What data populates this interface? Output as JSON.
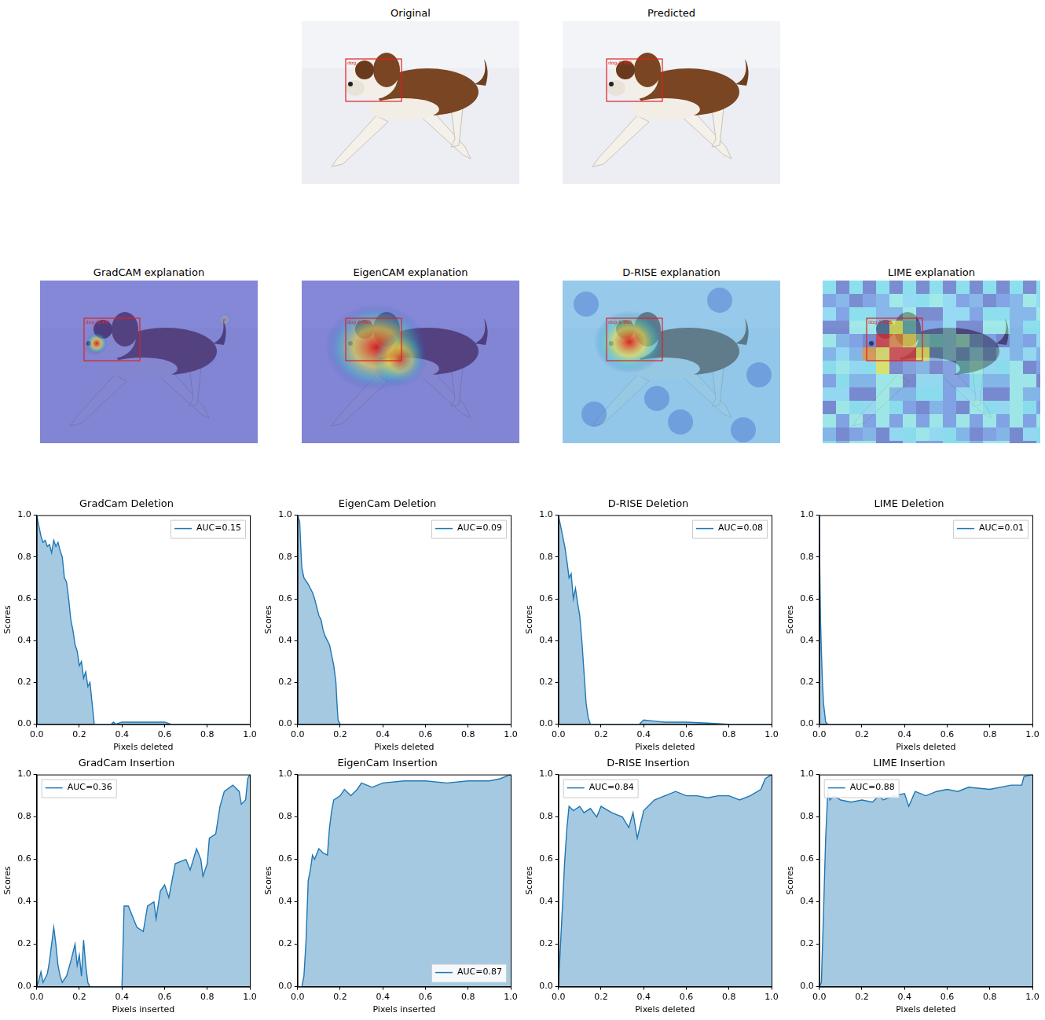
{
  "images": [
    {
      "title": "Original",
      "box_label": "dog"
    },
    {
      "title": "Predicted",
      "box_label": "dog-0.995"
    },
    {
      "title": "GradCAM explanation",
      "box_label": "dog-0.995"
    },
    {
      "title": "EigenCAM explanation",
      "box_label": "dog-0.995"
    },
    {
      "title": "D-RISE explanation",
      "box_label": "dog-0.995"
    },
    {
      "title": "LIME explanation",
      "box_label": "dog-0.995"
    }
  ],
  "chart_data": [
    {
      "type": "area",
      "title": "GradCam Deletion",
      "x_label": "Pixels deleted",
      "y_label": "Scores",
      "x": [
        0,
        0.01,
        0.02,
        0.03,
        0.04,
        0.05,
        0.06,
        0.07,
        0.08,
        0.09,
        0.1,
        0.11,
        0.12,
        0.13,
        0.14,
        0.15,
        0.16,
        0.17,
        0.18,
        0.19,
        0.2,
        0.21,
        0.22,
        0.23,
        0.24,
        0.25,
        0.26,
        0.27,
        0.35,
        0.36,
        0.37,
        0.4,
        0.6,
        0.63,
        1.0
      ],
      "series": [
        {
          "name": "AUC=0.15",
          "color": "#1f77b4",
          "values": [
            1.0,
            0.95,
            0.9,
            0.87,
            0.88,
            0.85,
            0.86,
            0.82,
            0.88,
            0.85,
            0.87,
            0.83,
            0.8,
            0.7,
            0.68,
            0.6,
            0.5,
            0.45,
            0.38,
            0.35,
            0.28,
            0.3,
            0.22,
            0.25,
            0.18,
            0.2,
            0.1,
            0.0,
            0.0,
            0.01,
            0.0,
            0.01,
            0.01,
            0.0,
            0.0
          ]
        }
      ],
      "xlim": [
        0,
        1
      ],
      "ylim": [
        0,
        1
      ],
      "xticks": [
        {
          "value": 0,
          "label": "0.0"
        },
        {
          "value": 0.2,
          "label": "0.2"
        },
        {
          "value": 0.4,
          "label": "0.4"
        },
        {
          "value": 0.6,
          "label": "0.6"
        },
        {
          "value": 0.8,
          "label": "0.8"
        },
        {
          "value": 1,
          "label": "1.0"
        }
      ],
      "yticks": [
        {
          "value": 0,
          "label": "0.0"
        },
        {
          "value": 0.2,
          "label": "0.2"
        },
        {
          "value": 0.4,
          "label": "0.4"
        },
        {
          "value": 0.6,
          "label": "0.6"
        },
        {
          "value": 0.8,
          "label": "0.8"
        },
        {
          "value": 1,
          "label": "1.0"
        }
      ],
      "grid": false,
      "legend": "upper right"
    },
    {
      "type": "area",
      "title": "EigenCam Deletion",
      "x_label": "Pixels deleted",
      "y_label": "Scores",
      "x": [
        0,
        0.01,
        0.015,
        0.02,
        0.03,
        0.05,
        0.07,
        0.08,
        0.1,
        0.11,
        0.12,
        0.13,
        0.15,
        0.16,
        0.17,
        0.18,
        0.185,
        0.19,
        0.2,
        1.0
      ],
      "series": [
        {
          "name": "AUC=0.09",
          "color": "#1f77b4",
          "values": [
            1.0,
            0.97,
            0.85,
            0.75,
            0.7,
            0.67,
            0.63,
            0.6,
            0.52,
            0.5,
            0.45,
            0.42,
            0.38,
            0.33,
            0.28,
            0.2,
            0.1,
            0.02,
            0.0,
            0.0
          ]
        }
      ],
      "xlim": [
        0,
        1
      ],
      "ylim": [
        0,
        1
      ],
      "xticks": [
        {
          "value": 0,
          "label": "0.0"
        },
        {
          "value": 0.2,
          "label": "0.2"
        },
        {
          "value": 0.4,
          "label": "0.4"
        },
        {
          "value": 0.6,
          "label": "0.6"
        },
        {
          "value": 0.8,
          "label": "0.8"
        },
        {
          "value": 1,
          "label": "1.0"
        }
      ],
      "yticks": [
        {
          "value": 0,
          "label": "0.0"
        },
        {
          "value": 0.2,
          "label": "0.2"
        },
        {
          "value": 0.4,
          "label": "0.4"
        },
        {
          "value": 0.6,
          "label": "0.6"
        },
        {
          "value": 0.8,
          "label": "0.8"
        },
        {
          "value": 1,
          "label": "1.0"
        }
      ],
      "grid": false,
      "legend": "upper right"
    },
    {
      "type": "area",
      "title": "D-RISE Deletion",
      "x_label": "Pixels deleted",
      "y_label": "Scores",
      "x": [
        0,
        0.01,
        0.02,
        0.03,
        0.04,
        0.05,
        0.06,
        0.07,
        0.08,
        0.09,
        0.1,
        0.11,
        0.12,
        0.13,
        0.14,
        0.15,
        0.2,
        0.38,
        0.4,
        0.45,
        0.5,
        0.6,
        0.7,
        0.8,
        1.0
      ],
      "series": [
        {
          "name": "AUC=0.08",
          "color": "#1f77b4",
          "values": [
            1.0,
            0.95,
            0.9,
            0.85,
            0.78,
            0.7,
            0.72,
            0.6,
            0.65,
            0.58,
            0.52,
            0.4,
            0.25,
            0.1,
            0.03,
            0.0,
            0.0,
            0.0,
            0.02,
            0.015,
            0.01,
            0.01,
            0.005,
            0.0,
            0.0
          ]
        }
      ],
      "xlim": [
        0,
        1
      ],
      "ylim": [
        0,
        1
      ],
      "xticks": [
        {
          "value": 0,
          "label": "0.0"
        },
        {
          "value": 0.2,
          "label": "0.2"
        },
        {
          "value": 0.4,
          "label": "0.4"
        },
        {
          "value": 0.6,
          "label": "0.6"
        },
        {
          "value": 0.8,
          "label": "0.8"
        },
        {
          "value": 1,
          "label": "1.0"
        }
      ],
      "yticks": [
        {
          "value": 0,
          "label": "0.0"
        },
        {
          "value": 0.2,
          "label": "0.2"
        },
        {
          "value": 0.4,
          "label": "0.4"
        },
        {
          "value": 0.6,
          "label": "0.6"
        },
        {
          "value": 0.8,
          "label": "0.8"
        },
        {
          "value": 1,
          "label": "1.0"
        }
      ],
      "grid": false,
      "legend": "upper right"
    },
    {
      "type": "area",
      "title": "LIME Deletion",
      "x_label": "Pixels deleted",
      "y_label": "Scores",
      "x": [
        0,
        0.003,
        0.006,
        0.01,
        0.015,
        0.02,
        0.03,
        0.04,
        1.0
      ],
      "series": [
        {
          "name": "AUC=0.01",
          "color": "#1f77b4",
          "values": [
            1.0,
            0.7,
            0.5,
            0.35,
            0.2,
            0.1,
            0.01,
            0.0,
            0.0
          ]
        }
      ],
      "xlim": [
        0,
        1
      ],
      "ylim": [
        0,
        1
      ],
      "xticks": [
        {
          "value": 0,
          "label": "0.0"
        },
        {
          "value": 0.2,
          "label": "0.2"
        },
        {
          "value": 0.4,
          "label": "0.4"
        },
        {
          "value": 0.6,
          "label": "0.6"
        },
        {
          "value": 0.8,
          "label": "0.8"
        },
        {
          "value": 1,
          "label": "1.0"
        }
      ],
      "yticks": [
        {
          "value": 0,
          "label": "0.0"
        },
        {
          "value": 0.2,
          "label": "0.2"
        },
        {
          "value": 0.4,
          "label": "0.4"
        },
        {
          "value": 0.6,
          "label": "0.6"
        },
        {
          "value": 0.8,
          "label": "0.8"
        },
        {
          "value": 1,
          "label": "1.0"
        }
      ],
      "grid": false,
      "legend": "upper right"
    },
    {
      "type": "area",
      "title": "GradCam Insertion",
      "x_label": "Pixels inserted",
      "y_label": "Scores",
      "x": [
        0,
        0.01,
        0.02,
        0.03,
        0.05,
        0.06,
        0.07,
        0.08,
        0.09,
        0.1,
        0.11,
        0.12,
        0.14,
        0.16,
        0.18,
        0.19,
        0.2,
        0.21,
        0.22,
        0.23,
        0.24,
        0.25,
        0.4,
        0.41,
        0.43,
        0.45,
        0.47,
        0.5,
        0.52,
        0.55,
        0.56,
        0.58,
        0.6,
        0.62,
        0.65,
        0.7,
        0.72,
        0.75,
        0.77,
        0.78,
        0.8,
        0.81,
        0.84,
        0.86,
        0.88,
        0.92,
        0.95,
        0.96,
        0.98,
        0.99,
        1.0
      ],
      "series": [
        {
          "name": "AUC=0.36",
          "color": "#1f77b4",
          "values": [
            0.0,
            0.03,
            0.07,
            0.02,
            0.06,
            0.12,
            0.2,
            0.28,
            0.2,
            0.1,
            0.05,
            0.02,
            0.05,
            0.12,
            0.2,
            0.1,
            0.15,
            0.05,
            0.22,
            0.1,
            0.02,
            0.0,
            0.0,
            0.38,
            0.38,
            0.33,
            0.28,
            0.26,
            0.38,
            0.4,
            0.32,
            0.45,
            0.48,
            0.42,
            0.58,
            0.6,
            0.55,
            0.65,
            0.6,
            0.52,
            0.58,
            0.7,
            0.72,
            0.85,
            0.92,
            0.95,
            0.92,
            0.86,
            0.88,
            0.98,
            1.0
          ]
        }
      ],
      "xlim": [
        0,
        1
      ],
      "ylim": [
        0,
        1
      ],
      "xticks": [
        {
          "value": 0,
          "label": "0.0"
        },
        {
          "value": 0.2,
          "label": "0.2"
        },
        {
          "value": 0.4,
          "label": "0.4"
        },
        {
          "value": 0.6,
          "label": "0.6"
        },
        {
          "value": 0.8,
          "label": "0.8"
        },
        {
          "value": 1,
          "label": "1.0"
        }
      ],
      "yticks": [
        {
          "value": 0,
          "label": "0.0"
        },
        {
          "value": 0.2,
          "label": "0.2"
        },
        {
          "value": 0.4,
          "label": "0.4"
        },
        {
          "value": 0.6,
          "label": "0.6"
        },
        {
          "value": 0.8,
          "label": "0.8"
        },
        {
          "value": 1,
          "label": "1.0"
        }
      ],
      "grid": false,
      "legend": "upper left"
    },
    {
      "type": "area",
      "title": "EigenCam Insertion",
      "x_label": "Pixels inserted",
      "y_label": "Scores",
      "x": [
        0,
        0.02,
        0.03,
        0.04,
        0.05,
        0.06,
        0.07,
        0.08,
        0.1,
        0.12,
        0.14,
        0.15,
        0.16,
        0.17,
        0.2,
        0.22,
        0.25,
        0.28,
        0.3,
        0.35,
        0.4,
        0.5,
        0.6,
        0.7,
        0.8,
        0.9,
        0.95,
        1.0
      ],
      "series": [
        {
          "name": "AUC=0.87",
          "color": "#1f77b4",
          "values": [
            0.0,
            0.0,
            0.05,
            0.22,
            0.5,
            0.55,
            0.62,
            0.6,
            0.65,
            0.63,
            0.62,
            0.75,
            0.83,
            0.88,
            0.9,
            0.93,
            0.9,
            0.93,
            0.96,
            0.94,
            0.96,
            0.97,
            0.97,
            0.96,
            0.97,
            0.97,
            0.98,
            1.0
          ]
        }
      ],
      "xlim": [
        0,
        1
      ],
      "ylim": [
        0,
        1
      ],
      "xticks": [
        {
          "value": 0,
          "label": "0.0"
        },
        {
          "value": 0.2,
          "label": "0.2"
        },
        {
          "value": 0.4,
          "label": "0.4"
        },
        {
          "value": 0.6,
          "label": "0.6"
        },
        {
          "value": 0.8,
          "label": "0.8"
        },
        {
          "value": 1,
          "label": "1.0"
        }
      ],
      "yticks": [
        {
          "value": 0,
          "label": "0.0"
        },
        {
          "value": 0.2,
          "label": "0.2"
        },
        {
          "value": 0.4,
          "label": "0.4"
        },
        {
          "value": 0.6,
          "label": "0.6"
        },
        {
          "value": 0.8,
          "label": "0.8"
        },
        {
          "value": 1,
          "label": "1.0"
        }
      ],
      "grid": false,
      "legend": "lower right"
    },
    {
      "type": "area",
      "title": "D-RISE Insertion",
      "x_label": "Pixels deleted",
      "y_label": "Scores",
      "x": [
        0,
        0.01,
        0.02,
        0.03,
        0.04,
        0.05,
        0.07,
        0.1,
        0.12,
        0.15,
        0.18,
        0.2,
        0.25,
        0.3,
        0.33,
        0.35,
        0.37,
        0.4,
        0.43,
        0.45,
        0.5,
        0.55,
        0.6,
        0.65,
        0.7,
        0.75,
        0.8,
        0.85,
        0.9,
        0.95,
        0.97,
        1.0
      ],
      "series": [
        {
          "name": "AUC=0.84",
          "color": "#1f77b4",
          "values": [
            0.0,
            0.2,
            0.4,
            0.6,
            0.75,
            0.85,
            0.83,
            0.85,
            0.82,
            0.84,
            0.8,
            0.85,
            0.82,
            0.8,
            0.75,
            0.82,
            0.7,
            0.83,
            0.86,
            0.88,
            0.9,
            0.92,
            0.9,
            0.9,
            0.89,
            0.9,
            0.9,
            0.88,
            0.9,
            0.93,
            0.98,
            1.0
          ]
        }
      ],
      "xlim": [
        0,
        1
      ],
      "ylim": [
        0,
        1
      ],
      "xticks": [
        {
          "value": 0,
          "label": "0.0"
        },
        {
          "value": 0.2,
          "label": "0.2"
        },
        {
          "value": 0.4,
          "label": "0.4"
        },
        {
          "value": 0.6,
          "label": "0.6"
        },
        {
          "value": 0.8,
          "label": "0.8"
        },
        {
          "value": 1,
          "label": "1.0"
        }
      ],
      "yticks": [
        {
          "value": 0,
          "label": "0.0"
        },
        {
          "value": 0.2,
          "label": "0.2"
        },
        {
          "value": 0.4,
          "label": "0.4"
        },
        {
          "value": 0.6,
          "label": "0.6"
        },
        {
          "value": 0.8,
          "label": "0.8"
        },
        {
          "value": 1,
          "label": "1.0"
        }
      ],
      "grid": false,
      "legend": "upper left"
    },
    {
      "type": "area",
      "title": "LIME Insertion",
      "x_label": "Pixels deleted",
      "y_label": "Scores",
      "x": [
        0,
        0.01,
        0.02,
        0.03,
        0.04,
        0.05,
        0.07,
        0.1,
        0.15,
        0.2,
        0.25,
        0.28,
        0.3,
        0.35,
        0.4,
        0.42,
        0.45,
        0.5,
        0.55,
        0.6,
        0.65,
        0.7,
        0.8,
        0.9,
        0.95,
        0.96,
        1.0
      ],
      "series": [
        {
          "name": "AUC=0.88",
          "color": "#1f77b4",
          "values": [
            0.0,
            0.02,
            0.35,
            0.7,
            0.92,
            0.88,
            0.9,
            0.88,
            0.87,
            0.88,
            0.87,
            0.9,
            0.88,
            0.9,
            0.91,
            0.85,
            0.92,
            0.9,
            0.92,
            0.93,
            0.92,
            0.94,
            0.93,
            0.95,
            0.95,
            0.99,
            1.0
          ]
        }
      ],
      "xlim": [
        0,
        1
      ],
      "ylim": [
        0,
        1
      ],
      "xticks": [
        {
          "value": 0,
          "label": "0.0"
        },
        {
          "value": 0.2,
          "label": "0.2"
        },
        {
          "value": 0.4,
          "label": "0.4"
        },
        {
          "value": 0.6,
          "label": "0.6"
        },
        {
          "value": 0.8,
          "label": "0.8"
        },
        {
          "value": 1,
          "label": "1.0"
        }
      ],
      "yticks": [
        {
          "value": 0,
          "label": "0.0"
        },
        {
          "value": 0.2,
          "label": "0.2"
        },
        {
          "value": 0.4,
          "label": "0.4"
        },
        {
          "value": 0.6,
          "label": "0.6"
        },
        {
          "value": 0.8,
          "label": "0.8"
        },
        {
          "value": 1,
          "label": "1.0"
        }
      ],
      "grid": false,
      "legend": "upper left"
    }
  ]
}
